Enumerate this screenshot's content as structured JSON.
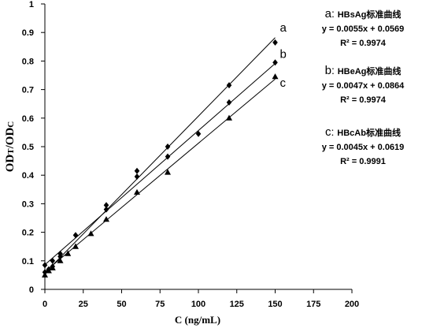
{
  "chart_data": {
    "type": "scatter",
    "xlabel": "C (ng/mL)",
    "ylabel": "ODT/ODC",
    "xlim": [
      0,
      200
    ],
    "ylim": [
      0,
      1
    ],
    "xticks": [
      "0",
      "25",
      "50",
      "75",
      "100",
      "125",
      "150",
      "175",
      "200"
    ],
    "yticks": [
      "0",
      "0.1",
      "0.2",
      "0.3",
      "0.4",
      "0.5",
      "0.6",
      "0.7",
      "0.8",
      "0.9",
      "1"
    ],
    "grid": false,
    "series": [
      {
        "name": "a",
        "marker": "diamond",
        "title": "HBsAg标准曲线",
        "equation": "y = 0.0055x + 0.0569",
        "r2": "R² = 0.9974",
        "slope": 0.0055,
        "intercept": 0.0569,
        "points": [
          [
            0,
            0.06
          ],
          [
            2.5,
            0.07
          ],
          [
            5,
            0.1
          ],
          [
            10,
            0.125
          ],
          [
            20,
            0.19
          ],
          [
            40,
            0.295
          ],
          [
            60,
            0.415
          ],
          [
            80,
            0.5
          ],
          [
            120,
            0.715
          ],
          [
            150,
            0.865
          ]
        ]
      },
      {
        "name": "b",
        "marker": "diamond",
        "title": "HBeAg标准曲线",
        "equation": "y = 0.0047x + 0.0864",
        "r2": "R² = 0.9974",
        "slope": 0.0047,
        "intercept": 0.0864,
        "points": [
          [
            0,
            0.085
          ],
          [
            5,
            0.08
          ],
          [
            10,
            0.115
          ],
          [
            40,
            0.28
          ],
          [
            60,
            0.395
          ],
          [
            80,
            0.465
          ],
          [
            100,
            0.545
          ],
          [
            120,
            0.655
          ],
          [
            150,
            0.795
          ]
        ]
      },
      {
        "name": "c",
        "marker": "triangle",
        "title": "HBcAb标准曲线",
        "equation": "y = 0.0045x + 0.0619",
        "r2": "R² = 0.9991",
        "slope": 0.0045,
        "intercept": 0.0619,
        "points": [
          [
            0,
            0.05
          ],
          [
            2.5,
            0.065
          ],
          [
            5,
            0.075
          ],
          [
            10,
            0.1
          ],
          [
            15,
            0.125
          ],
          [
            20,
            0.15
          ],
          [
            30,
            0.195
          ],
          [
            40,
            0.245
          ],
          [
            60,
            0.34
          ],
          [
            80,
            0.41
          ],
          [
            120,
            0.6
          ],
          [
            150,
            0.745
          ]
        ]
      }
    ]
  }
}
